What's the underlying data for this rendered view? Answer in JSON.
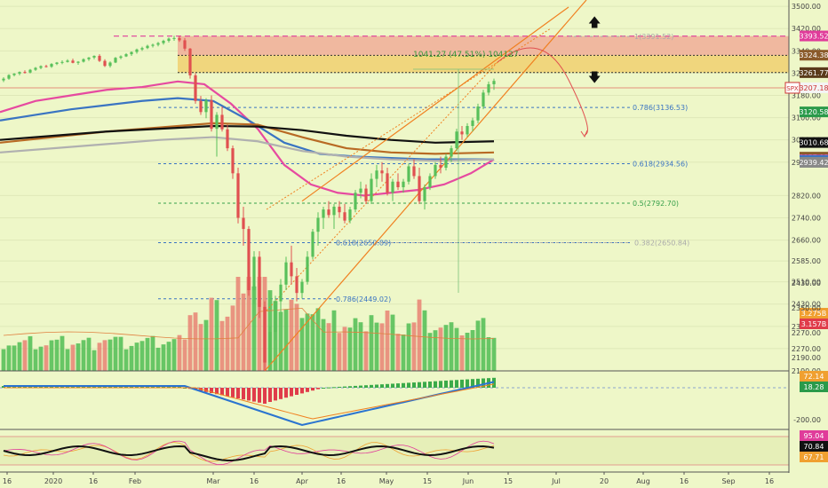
{
  "chart_data": {
    "type": "candlestick",
    "title": "",
    "symbol": "SPX",
    "price_scale": {
      "ticks": [
        3500,
        3420,
        3340,
        3260,
        3180,
        3100,
        3020,
        2940,
        2820,
        2740,
        2660,
        2585,
        2510,
        2430,
        2350,
        2270,
        2190
      ],
      "range": [
        2190,
        3510
      ],
      "tick_labels": [
        "3500.00",
        "3420.00",
        "3340.00",
        "3260.00",
        "3180.00",
        "3100.00",
        "3020.00",
        "2940.00",
        "2820.00",
        "2740.00",
        "2660.00",
        "2585.00",
        "2510.00",
        "2430.00",
        "2350.00",
        "2270.00",
        "2190.00"
      ]
    },
    "time_axis": {
      "labels": [
        "16",
        "2020",
        "16",
        "Feb",
        "Mar",
        "16",
        "Apr",
        "16",
        "May",
        "15",
        "Jun",
        "15",
        "Jul",
        "20",
        "Aug",
        "16",
        "Sep",
        "16"
      ],
      "positions": [
        8,
        60,
        105,
        152,
        240,
        286,
        340,
        384,
        435,
        481,
        527,
        572,
        626,
        680,
        724,
        770,
        820,
        866
      ]
    },
    "candles": [
      [
        3234,
        3245,
        3228,
        3240
      ],
      [
        3240,
        3256,
        3236,
        3253
      ],
      [
        3253,
        3260,
        3248,
        3258
      ],
      [
        3258,
        3266,
        3252,
        3264
      ],
      [
        3264,
        3270,
        3258,
        3262
      ],
      [
        3262,
        3275,
        3259,
        3272
      ],
      [
        3272,
        3282,
        3268,
        3279
      ],
      [
        3279,
        3288,
        3274,
        3285
      ],
      [
        3285,
        3290,
        3280,
        3283
      ],
      [
        3283,
        3296,
        3279,
        3293
      ],
      [
        3293,
        3300,
        3289,
        3298
      ],
      [
        3298,
        3306,
        3292,
        3300
      ],
      [
        3300,
        3310,
        3298,
        3305
      ],
      [
        3305,
        3312,
        3295,
        3297
      ],
      [
        3297,
        3303,
        3290,
        3301
      ],
      [
        3301,
        3313,
        3298,
        3310
      ],
      [
        3310,
        3318,
        3304,
        3316
      ],
      [
        3316,
        3324,
        3310,
        3322
      ],
      [
        3322,
        3328,
        3300,
        3304
      ],
      [
        3304,
        3310,
        3282,
        3286
      ],
      [
        3286,
        3302,
        3280,
        3298
      ],
      [
        3298,
        3318,
        3296,
        3315
      ],
      [
        3315,
        3324,
        3310,
        3320
      ],
      [
        3320,
        3332,
        3318,
        3328
      ],
      [
        3328,
        3338,
        3322,
        3336
      ],
      [
        3336,
        3348,
        3330,
        3345
      ],
      [
        3345,
        3355,
        3340,
        3350
      ],
      [
        3350,
        3362,
        3346,
        3358
      ],
      [
        3358,
        3366,
        3352,
        3362
      ],
      [
        3362,
        3372,
        3356,
        3368
      ],
      [
        3368,
        3380,
        3362,
        3376
      ],
      [
        3376,
        3388,
        3370,
        3384
      ],
      [
        3384,
        3394,
        3376,
        3386
      ],
      [
        3386,
        3394,
        3372,
        3378
      ],
      [
        3378,
        3386,
        3340,
        3348
      ],
      [
        3348,
        3350,
        3240,
        3252
      ],
      [
        3252,
        3260,
        3150,
        3160
      ],
      [
        3160,
        3178,
        3110,
        3120
      ],
      [
        3120,
        3170,
        3098,
        3162
      ],
      [
        3162,
        3180,
        3050,
        3060
      ],
      [
        3060,
        3120,
        2960,
        3110
      ],
      [
        3110,
        3140,
        3050,
        3058
      ],
      [
        3058,
        3075,
        2980,
        2990
      ],
      [
        2990,
        3000,
        2880,
        2900
      ],
      [
        2900,
        2920,
        2720,
        2740
      ],
      [
        2740,
        2780,
        2640,
        2700
      ],
      [
        2700,
        2710,
        2460,
        2480
      ],
      [
        2480,
        2620,
        2430,
        2600
      ],
      [
        2600,
        2620,
        2380,
        2420
      ],
      [
        2420,
        2440,
        2190,
        2220
      ],
      [
        2220,
        2350,
        2195,
        2330
      ],
      [
        2330,
        2460,
        2300,
        2440
      ],
      [
        2440,
        2520,
        2400,
        2500
      ],
      [
        2500,
        2600,
        2480,
        2580
      ],
      [
        2580,
        2640,
        2500,
        2530
      ],
      [
        2530,
        2560,
        2440,
        2470
      ],
      [
        2470,
        2520,
        2450,
        2510
      ],
      [
        2510,
        2620,
        2500,
        2600
      ],
      [
        2600,
        2700,
        2590,
        2690
      ],
      [
        2690,
        2760,
        2640,
        2740
      ],
      [
        2740,
        2780,
        2700,
        2770
      ],
      [
        2770,
        2800,
        2740,
        2750
      ],
      [
        2750,
        2790,
        2700,
        2780
      ],
      [
        2780,
        2800,
        2740,
        2760
      ],
      [
        2760,
        2790,
        2720,
        2730
      ],
      [
        2730,
        2780,
        2720,
        2770
      ],
      [
        2770,
        2840,
        2760,
        2830
      ],
      [
        2830,
        2870,
        2810,
        2845
      ],
      [
        2845,
        2860,
        2790,
        2800
      ],
      [
        2800,
        2900,
        2790,
        2880
      ],
      [
        2880,
        2930,
        2850,
        2910
      ],
      [
        2910,
        2940,
        2870,
        2900
      ],
      [
        2900,
        2920,
        2820,
        2830
      ],
      [
        2830,
        2880,
        2800,
        2870
      ],
      [
        2870,
        2900,
        2840,
        2850
      ],
      [
        2850,
        2880,
        2830,
        2870
      ],
      [
        2870,
        2935,
        2860,
        2925
      ],
      [
        2925,
        2950,
        2880,
        2890
      ],
      [
        2890,
        2920,
        2790,
        2800
      ],
      [
        2800,
        2860,
        2770,
        2850
      ],
      [
        2850,
        2900,
        2840,
        2890
      ],
      [
        2890,
        2940,
        2880,
        2930
      ],
      [
        2930,
        2960,
        2900,
        2920
      ],
      [
        2920,
        2970,
        2910,
        2960
      ],
      [
        2960,
        3000,
        2940,
        2990
      ],
      [
        2990,
        3060,
        2980,
        3050
      ],
      [
        3050,
        3070,
        3020,
        3040
      ],
      [
        3040,
        3080,
        3030,
        3070
      ],
      [
        3070,
        3100,
        3050,
        3090
      ],
      [
        3090,
        3150,
        3080,
        3140
      ],
      [
        3140,
        3200,
        3130,
        3190
      ],
      [
        3190,
        3230,
        3180,
        3220
      ],
      [
        3220,
        3240,
        3200,
        3232
      ]
    ],
    "moving_averages": [
      {
        "color": "#e64aa0",
        "points": [
          [
            0,
            3120
          ],
          [
            40,
            3160
          ],
          [
            80,
            3180
          ],
          [
            120,
            3200
          ],
          [
            160,
            3210
          ],
          [
            200,
            3230
          ],
          [
            230,
            3220
          ],
          [
            260,
            3150
          ],
          [
            290,
            3060
          ],
          [
            320,
            2930
          ],
          [
            350,
            2860
          ],
          [
            380,
            2830
          ],
          [
            410,
            2820
          ],
          [
            440,
            2830
          ],
          [
            470,
            2840
          ],
          [
            500,
            2860
          ],
          [
            530,
            2900
          ],
          [
            556,
            2950
          ]
        ]
      },
      {
        "color": "#3a74c2",
        "points": [
          [
            0,
            3090
          ],
          [
            40,
            3110
          ],
          [
            80,
            3130
          ],
          [
            120,
            3145
          ],
          [
            160,
            3160
          ],
          [
            200,
            3170
          ],
          [
            240,
            3160
          ],
          [
            280,
            3090
          ],
          [
            320,
            3010
          ],
          [
            360,
            2970
          ],
          [
            400,
            2960
          ],
          [
            440,
            2955
          ],
          [
            480,
            2950
          ],
          [
            520,
            2950
          ],
          [
            556,
            2950
          ]
        ]
      },
      {
        "color": "#b86a24",
        "points": [
          [
            0,
            3010
          ],
          [
            60,
            3030
          ],
          [
            120,
            3050
          ],
          [
            180,
            3065
          ],
          [
            240,
            3080
          ],
          [
            290,
            3075
          ],
          [
            340,
            3030
          ],
          [
            390,
            2990
          ],
          [
            440,
            2975
          ],
          [
            490,
            2970
          ],
          [
            556,
            2975
          ]
        ]
      },
      {
        "color": "#111111",
        "points": [
          [
            0,
            3020
          ],
          [
            60,
            3035
          ],
          [
            120,
            3050
          ],
          [
            180,
            3060
          ],
          [
            240,
            3070
          ],
          [
            290,
            3068
          ],
          [
            340,
            3055
          ],
          [
            390,
            3035
          ],
          [
            440,
            3020
          ],
          [
            490,
            3010
          ],
          [
            556,
            3015
          ]
        ]
      },
      {
        "color": "#b0b0b0",
        "points": [
          [
            0,
            2975
          ],
          [
            60,
            2990
          ],
          [
            120,
            3005
          ],
          [
            180,
            3020
          ],
          [
            240,
            3030
          ],
          [
            290,
            3015
          ],
          [
            340,
            2980
          ],
          [
            390,
            2960
          ],
          [
            440,
            2950
          ],
          [
            490,
            2945
          ],
          [
            556,
            2950
          ]
        ]
      }
    ],
    "horizontal_lines": [
      {
        "label": "0.786(3136.53)",
        "value": 3136.53,
        "color": "#3a74c2"
      },
      {
        "label": "0.618(2934.56)",
        "value": 2934.56,
        "color": "#3a74c2"
      },
      {
        "label": "0.5(2792.70)",
        "value": 2792.7,
        "color": "#37a04a"
      },
      {
        "label": "0.618(2650.89)",
        "value": 2650.89,
        "color": "#3a74c2"
      },
      {
        "label": "0.382(2650.84)",
        "value": 2650.84,
        "color": "#aaaaaa"
      },
      {
        "label": "0.786(2449.02)",
        "value": 2449.02,
        "color": "#3a74c2"
      },
      {
        "label": "1(3391.52)",
        "value": 3391.52,
        "color": "#aaaaaa"
      }
    ],
    "measure_label": "1041.27 (47.51%) 104127",
    "right_badges": [
      {
        "label": "3393.52",
        "value": 3393.52,
        "bg": "#e03c9a",
        "fg": "#ffffff"
      },
      {
        "label": "3324.38",
        "value": 3324.38,
        "bg": "#8a5a2a",
        "fg": "#ffffff"
      },
      {
        "label": "3261.77",
        "value": 3261.77,
        "bg": "#5a3a1a",
        "fg": "#ffffff"
      },
      {
        "label": "3207.18",
        "value": 3207.18,
        "bg": "#f4f4f4",
        "fg": "#cc3333",
        "tag": "SPX"
      },
      {
        "label": "3120.58",
        "value": 3120.58,
        "bg": "#2a9a4a",
        "fg": "#ffffff"
      },
      {
        "label": "3010.68",
        "value": 3010.68,
        "bg": "#111111",
        "fg": "#ffffff"
      },
      {
        "label": "2957.93",
        "value": 2957.93,
        "bg": "#8a5a2a",
        "fg": "#ffffff"
      },
      {
        "label": "2948.31",
        "value": 2948.31,
        "bg": "#e03c9a",
        "fg": "#ffffff"
      },
      {
        "label": "2946.41",
        "value": 2946.41,
        "bg": "#3a74c2",
        "fg": "#ffffff"
      },
      {
        "label": "2939.42",
        "value": 2939.42,
        "bg": "#888888",
        "fg": "#ffffff"
      }
    ],
    "volume_badges": [
      {
        "label": "3.275B",
        "bg": "#f0a030",
        "fg": "#ffffff"
      },
      {
        "label": "3.157B",
        "bg": "#e03c4a",
        "fg": "#ffffff"
      }
    ],
    "volume_ticks": [
      "2430.00",
      "2350.00",
      "2270.00",
      "2190.00"
    ],
    "macd": {
      "badges": [
        {
          "label": "72.14",
          "bg": "#f0a030",
          "fg": "#ffffff"
        },
        {
          "label": "18.28",
          "bg": "#2a9a4a",
          "fg": "#ffffff"
        }
      ],
      "tick": "-200.00"
    },
    "stoch": {
      "badges": [
        {
          "label": "95.04",
          "bg": "#e03c9a",
          "fg": "#ffffff"
        },
        {
          "label": "70.84",
          "bg": "#111111",
          "fg": "#ffffff"
        },
        {
          "label": "67.71",
          "bg": "#f0a030",
          "fg": "#ffffff"
        }
      ]
    },
    "colors": {
      "background": "#eef7c8",
      "up": "#58c05a",
      "down": "#e05050",
      "volume_up": "#58c05a",
      "volume_down": "#e88878",
      "zone_upper": "#f0b09a",
      "zone_lower": "#f0d070",
      "trend": "#f08020"
    }
  }
}
